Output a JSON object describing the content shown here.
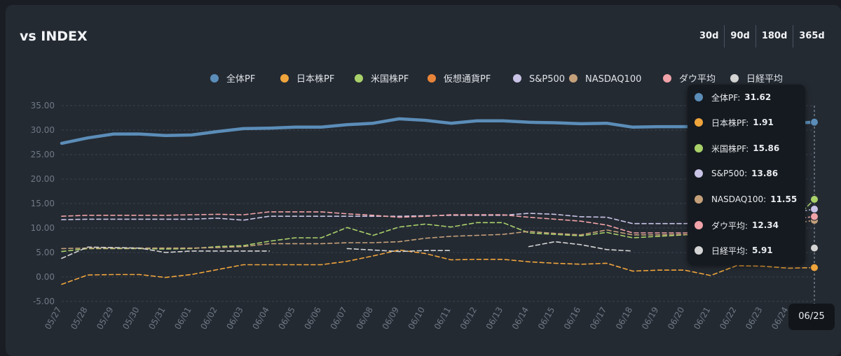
{
  "header": {
    "title": "vs INDEX"
  },
  "ranges": [
    "30d",
    "90d",
    "180d",
    "365d"
  ],
  "tooltip": {
    "date": "06/25",
    "rows": [
      {
        "label": "全体PF:",
        "value": "31.62",
        "color": "#5b8db8"
      },
      {
        "label": "日本株PF:",
        "value": "1.91",
        "color": "#f0a53c"
      },
      {
        "label": "米国株PF:",
        "value": "15.86",
        "color": "#a9d16a"
      },
      {
        "label": "S&P500:",
        "value": "13.86",
        "color": "#c9c3e6"
      },
      {
        "label": "NASDAQ100:",
        "value": "11.55",
        "color": "#c4a07a"
      },
      {
        "label": "ダウ平均:",
        "value": "12.34",
        "color": "#f0a3a8"
      },
      {
        "label": "日経平均:",
        "value": "5.91",
        "color": "#d4d4d4"
      }
    ]
  },
  "chart_data": {
    "type": "line",
    "ylim": [
      -5,
      35
    ],
    "yticks": [
      -5,
      0,
      5,
      10,
      15,
      20,
      25,
      30,
      35
    ],
    "ytick_labels": [
      "-5.00",
      "0.00",
      "5.00",
      "10.00",
      "15.00",
      "20.00",
      "25.00",
      "30.00",
      "35.00"
    ],
    "grid": true,
    "legend_position": "top-right",
    "x": [
      "05/27",
      "05/28",
      "05/29",
      "05/30",
      "05/31",
      "06/01",
      "06/02",
      "06/03",
      "06/04",
      "06/05",
      "06/06",
      "06/07",
      "06/08",
      "06/09",
      "06/10",
      "06/11",
      "06/12",
      "06/13",
      "06/14",
      "06/15",
      "06/16",
      "06/17",
      "06/18",
      "06/19",
      "06/20",
      "06/21",
      "06/22",
      "06/23",
      "06/24",
      "06/25"
    ],
    "series": [
      {
        "name": "全体PF",
        "color": "#5b8db8",
        "style": "solid",
        "values": [
          27.3,
          28.4,
          29.2,
          29.2,
          28.9,
          29.0,
          29.7,
          30.3,
          30.4,
          30.6,
          30.6,
          31.1,
          31.4,
          32.3,
          32.0,
          31.4,
          31.9,
          31.9,
          31.6,
          31.5,
          31.3,
          31.4,
          30.6,
          30.7,
          30.7,
          30.8,
          31.0,
          31.2,
          31.4,
          31.62
        ]
      },
      {
        "name": "日本株PF",
        "color": "#f0a53c",
        "style": "dashed",
        "values": [
          -1.5,
          0.4,
          0.5,
          0.5,
          -0.1,
          0.5,
          1.5,
          2.5,
          2.5,
          2.5,
          2.5,
          3.2,
          4.3,
          5.5,
          4.8,
          3.5,
          3.6,
          3.6,
          3.1,
          2.8,
          2.6,
          2.8,
          1.2,
          1.4,
          1.4,
          0.3,
          2.3,
          2.2,
          1.8,
          1.91
        ]
      },
      {
        "name": "米国株PF",
        "color": "#a9d16a",
        "style": "dashed",
        "values": [
          5.2,
          5.8,
          5.8,
          5.8,
          5.7,
          5.8,
          6.2,
          6.4,
          7.3,
          8.0,
          8.0,
          10.1,
          8.5,
          10.2,
          10.8,
          10.2,
          11.1,
          11.1,
          9.0,
          8.7,
          8.4,
          9.1,
          8.0,
          8.3,
          8.6,
          8.9,
          9.1,
          9.3,
          10.5,
          15.86
        ]
      },
      {
        "name": "仮想通貨PF",
        "color": "#e8843a",
        "style": "dashed",
        "values": [
          null,
          null,
          null,
          null,
          null,
          null,
          null,
          null,
          null,
          null,
          null,
          null,
          null,
          null,
          null,
          null,
          null,
          null,
          null,
          null,
          null,
          null,
          null,
          null,
          null,
          null,
          null,
          null,
          null,
          null
        ]
      },
      {
        "name": "S&P500",
        "color": "#c9c3e6",
        "style": "dashed",
        "values": [
          11.7,
          11.8,
          11.8,
          11.8,
          11.8,
          11.8,
          12.0,
          11.6,
          12.4,
          12.4,
          12.4,
          12.4,
          12.4,
          12.4,
          12.5,
          12.6,
          12.6,
          12.6,
          13.0,
          12.8,
          12.3,
          12.2,
          10.9,
          10.9,
          10.9,
          11.1,
          11.6,
          12.3,
          13.0,
          13.86
        ]
      },
      {
        "name": "NASDAQ100",
        "color": "#c4a07a",
        "style": "dashed",
        "values": [
          5.8,
          5.9,
          5.9,
          5.9,
          5.9,
          5.9,
          6.0,
          6.2,
          6.8,
          6.8,
          6.8,
          7.0,
          7.0,
          7.2,
          7.9,
          8.3,
          8.5,
          8.7,
          9.3,
          8.9,
          8.6,
          9.6,
          8.6,
          8.6,
          8.7,
          9.0,
          9.5,
          10.0,
          10.8,
          11.55
        ]
      },
      {
        "name": "ダウ平均",
        "color": "#f0a3a8",
        "style": "dashed",
        "values": [
          12.4,
          12.6,
          12.6,
          12.6,
          12.6,
          12.7,
          12.8,
          12.7,
          13.3,
          13.3,
          13.3,
          12.9,
          12.6,
          12.2,
          12.4,
          12.7,
          12.7,
          12.7,
          12.2,
          11.8,
          11.4,
          10.6,
          9.0,
          9.0,
          9.0,
          9.5,
          10.2,
          11.0,
          11.7,
          12.34
        ]
      },
      {
        "name": "日経平均",
        "color": "#d4d4d4",
        "style": "dashed",
        "values": [
          3.8,
          6.1,
          6.0,
          5.9,
          5.0,
          5.3,
          5.3,
          5.3,
          5.3,
          null,
          null,
          5.8,
          5.5,
          5.2,
          5.4,
          5.4,
          null,
          null,
          6.2,
          7.2,
          6.6,
          5.6,
          5.3,
          null,
          null,
          null,
          null,
          null,
          null,
          5.91
        ]
      }
    ]
  }
}
